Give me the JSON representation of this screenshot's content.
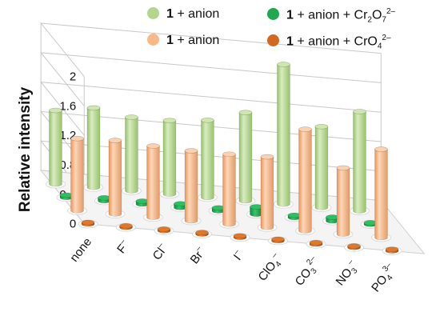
{
  "chart_data": {
    "type": "bar",
    "subtype": "3d-grouped-cylinder",
    "ylabel": "Relative intensity",
    "ylim": [
      0,
      2
    ],
    "yticks": [
      "0",
      "0.4",
      "0.8",
      "1.2",
      "1.6",
      "2"
    ],
    "grid": true,
    "categories": [
      "none",
      "F–",
      "Cl–",
      "Br–",
      "I–",
      "ClO4–",
      "CO32–",
      "NO3–",
      "PO43–"
    ],
    "category_labels": [
      {
        "base": "none",
        "sub": "",
        "sup": ""
      },
      {
        "base": "F",
        "sub": "",
        "sup": "–"
      },
      {
        "base": "Cl",
        "sub": "",
        "sup": "–"
      },
      {
        "base": "Br",
        "sub": "",
        "sup": "–"
      },
      {
        "base": "I",
        "sub": "",
        "sup": "–"
      },
      {
        "base": "ClO",
        "sub": "4",
        "sup": "–"
      },
      {
        "base": "CO",
        "sub": "3",
        "sup": "2–"
      },
      {
        "base": "NO",
        "sub": "3",
        "sup": "–"
      },
      {
        "base": "PO",
        "sub": "4",
        "sup": "3–"
      }
    ],
    "legend_position": "top",
    "series": [
      {
        "name": "1 + anion + CrO42–",
        "color": "#d2691e",
        "row": 0,
        "values": [
          0.02,
          0.02,
          0.02,
          0.02,
          0.02,
          0.02,
          0.02,
          0.02,
          0.02
        ]
      },
      {
        "name": "1 + anion",
        "color": "#f7b98a",
        "row": 1,
        "values": [
          0.98,
          1.0,
          0.97,
          0.95,
          0.95,
          0.96,
          1.38,
          0.9,
          1.2
        ]
      },
      {
        "name": "1 + anion + Cr2O72–",
        "color": "#1fa84f",
        "row": 2,
        "values": [
          0.03,
          0.04,
          0.04,
          0.05,
          0.04,
          0.1,
          0.03,
          0.05,
          0.02
        ]
      },
      {
        "name": "1 + anion",
        "color": "#b5d58c",
        "row": 3,
        "values": [
          1.0,
          1.08,
          1.0,
          1.0,
          1.05,
          1.2,
          1.9,
          1.1,
          1.35
        ]
      }
    ]
  },
  "legend": [
    {
      "bold": "1",
      "text": " + anion",
      "color": "#b5d58c"
    },
    {
      "bold": "1",
      "text": " + anion + Cr",
      "sub1": "2",
      "mid": "O",
      "sub2": "7",
      "sup": "2–",
      "color": "#1fa84f"
    },
    {
      "bold": "1",
      "text": " + anion",
      "color": "#f7b98a"
    },
    {
      "bold": "1",
      "text": " + anion + CrO",
      "sub1": "4",
      "sup": "2–",
      "color": "#d2691e"
    }
  ]
}
